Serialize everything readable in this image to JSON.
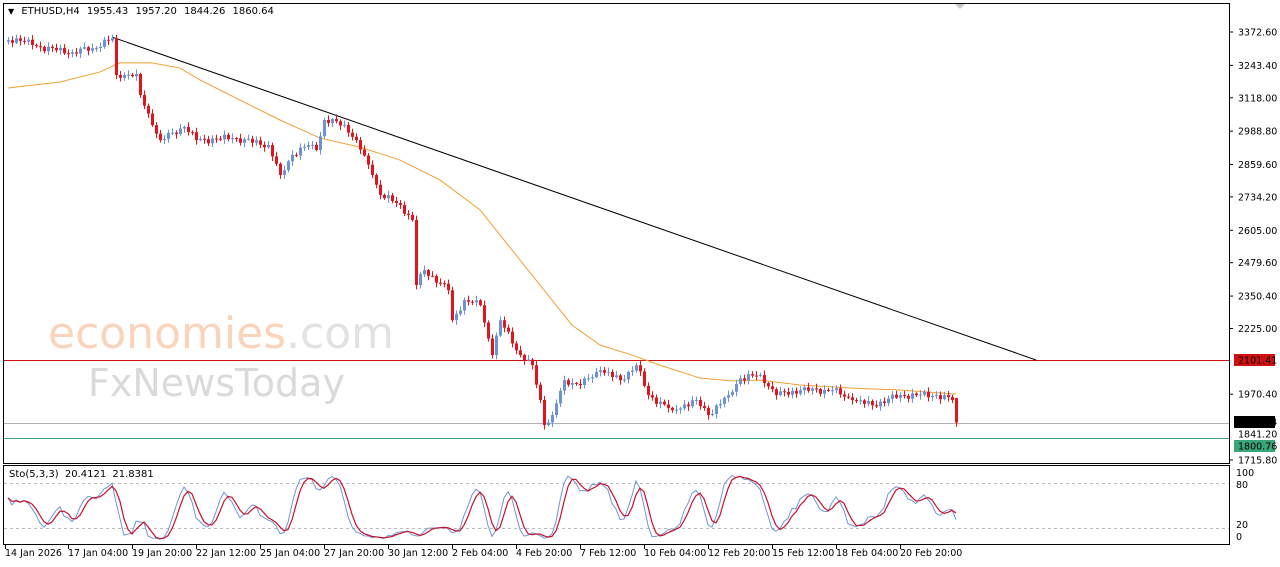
{
  "header": {
    "menu_icon": "triangle-down-icon",
    "symbol": "ETHUSD,H4",
    "open": "1955.43",
    "high": "1957.20",
    "low": "1844.26",
    "close": "1860.64"
  },
  "watermark": {
    "brand1": "economies",
    "brand1_suffix": ".com",
    "brand2": "FxNewsToday"
  },
  "colors": {
    "bull": "#6b94d6",
    "bear": "#e3141c",
    "ma": "#f0a030",
    "trendline": "#000000",
    "resistance": "#d01010",
    "bid_line": "#b0b0b0",
    "support": "#3aa57a",
    "stoch_main": "#6f96cf",
    "stoch_signal": "#c8102e"
  },
  "chart_data": {
    "type": "candlestick",
    "symbol": "ETHUSD",
    "timeframe": "H4",
    "ylim": [
      1715.8,
      3372.6
    ],
    "y_ticks": [
      "3372.60",
      "3243.40",
      "3118.00",
      "2988.80",
      "2859.60",
      "2734.20",
      "2605.00",
      "2479.60",
      "2350.40",
      "2225.00",
      "1970.40",
      "1715.80"
    ],
    "x_ticks": [
      "14 Jan 2026",
      "17 Jan 04:00",
      "19 Jan 20:00",
      "22 Jan 12:00",
      "25 Jan 04:00",
      "27 Jan 20:00",
      "30 Jan 12:00",
      "2 Feb 04:00",
      "4 Feb 20:00",
      "7 Feb 12:00",
      "10 Feb 04:00",
      "12 Feb 20:00",
      "15 Feb 12:00",
      "18 Feb 04:00",
      "20 Feb 20:00"
    ],
    "x_tick_times": [
      "2026-01-14 00:00",
      "2026-01-17 04:00",
      "2026-01-19 20:00",
      "2026-01-22 12:00",
      "2026-01-25 04:00",
      "2026-01-27 20:00",
      "2026-01-30 12:00",
      "2026-02-02 04:00",
      "2026-02-04 20:00",
      "2026-02-07 12:00",
      "2026-02-10 04:00",
      "2026-02-12 20:00",
      "2026-02-15 12:00",
      "2026-02-18 04:00",
      "2026-02-20 20:00"
    ],
    "close_path": [
      [
        "2026-01-14 16:00",
        3341
      ],
      [
        "2026-01-15 00:00",
        3348
      ],
      [
        "2026-01-15 16:00",
        3322
      ],
      [
        "2026-01-16 16:00",
        3302
      ],
      [
        "2026-01-17 08:00",
        3294
      ],
      [
        "2026-01-18 04:00",
        3310
      ],
      [
        "2026-01-19 00:00",
        3349
      ],
      [
        "2026-01-19 04:00",
        3206
      ],
      [
        "2026-01-20 00:00",
        3210
      ],
      [
        "2026-01-20 04:00",
        3129
      ],
      [
        "2026-01-20 16:00",
        3012
      ],
      [
        "2026-01-21 00:00",
        2954
      ],
      [
        "2026-01-22 00:00",
        3005
      ],
      [
        "2026-01-22 12:00",
        2954
      ],
      [
        "2026-01-24 00:00",
        2962
      ],
      [
        "2026-01-25 12:00",
        2935
      ],
      [
        "2026-01-26 00:00",
        2819
      ],
      [
        "2026-01-26 12:00",
        2897
      ],
      [
        "2026-01-27 04:00",
        2935
      ],
      [
        "2026-01-27 12:00",
        2916
      ],
      [
        "2026-01-27 20:00",
        3032
      ],
      [
        "2026-01-28 16:00",
        3013
      ],
      [
        "2026-01-29 04:00",
        2954
      ],
      [
        "2026-01-29 20:00",
        2819
      ],
      [
        "2026-01-30 04:00",
        2742
      ],
      [
        "2026-01-31 00:00",
        2703
      ],
      [
        "2026-01-31 12:00",
        2645
      ],
      [
        "2026-01-31 16:00",
        2393
      ],
      [
        "2026-02-01 00:00",
        2451
      ],
      [
        "2026-02-02 00:00",
        2373
      ],
      [
        "2026-02-02 04:00",
        2257
      ],
      [
        "2026-02-02 16:00",
        2335
      ],
      [
        "2026-02-03 08:00",
        2315
      ],
      [
        "2026-02-03 20:00",
        2122
      ],
      [
        "2026-02-04 04:00",
        2257
      ],
      [
        "2026-02-05 00:00",
        2122
      ],
      [
        "2026-02-05 12:00",
        2083
      ],
      [
        "2026-02-05 20:00",
        1948
      ],
      [
        "2026-02-06 00:00",
        1851
      ],
      [
        "2026-02-06 08:00",
        1890
      ],
      [
        "2026-02-06 20:00",
        2025
      ],
      [
        "2026-02-07 12:00",
        2006
      ],
      [
        "2026-02-08 08:00",
        2064
      ],
      [
        "2026-02-09 04:00",
        2025
      ],
      [
        "2026-02-09 20:00",
        2083
      ],
      [
        "2026-02-10 08:00",
        1967
      ],
      [
        "2026-02-11 08:00",
        1909
      ],
      [
        "2026-02-12 08:00",
        1948
      ],
      [
        "2026-02-12 20:00",
        1890
      ],
      [
        "2026-02-13 16:00",
        1967
      ],
      [
        "2026-02-14 04:00",
        2032
      ],
      [
        "2026-02-15 00:00",
        2045
      ],
      [
        "2026-02-15 16:00",
        1967
      ],
      [
        "2026-02-16 16:00",
        1986
      ],
      [
        "2026-02-18 00:00",
        1986
      ],
      [
        "2026-02-18 20:00",
        1948
      ],
      [
        "2026-02-19 16:00",
        1928
      ],
      [
        "2026-02-20 20:00",
        1967
      ],
      [
        "2026-02-22 08:00",
        1967
      ],
      [
        "2026-02-23 00:00",
        1948
      ],
      [
        "2026-02-23 04:00",
        1860.64
      ]
    ],
    "moving_average": [
      [
        "2026-01-14 16:00",
        3156
      ],
      [
        "2026-01-16 20:00",
        3179
      ],
      [
        "2026-01-18 12:00",
        3218
      ],
      [
        "2026-01-19 08:00",
        3253
      ],
      [
        "2026-01-20 16:00",
        3253
      ],
      [
        "2026-01-21 20:00",
        3233
      ],
      [
        "2026-01-22 16:00",
        3187
      ],
      [
        "2026-01-24 08:00",
        3109
      ],
      [
        "2026-01-26 00:00",
        3032
      ],
      [
        "2026-01-27 16:00",
        2962
      ],
      [
        "2026-01-29 08:00",
        2927
      ],
      [
        "2026-01-31 00:00",
        2877
      ],
      [
        "2026-02-01 16:00",
        2800
      ],
      [
        "2026-02-03 08:00",
        2684
      ],
      [
        "2026-02-05 00:00",
        2490
      ],
      [
        "2026-02-06 08:00",
        2335
      ],
      [
        "2026-02-07 04:00",
        2238
      ],
      [
        "2026-02-08 08:00",
        2161
      ],
      [
        "2026-02-09 16:00",
        2122
      ],
      [
        "2026-02-10 20:00",
        2083
      ],
      [
        "2026-02-12 12:00",
        2033
      ],
      [
        "2026-02-13 20:00",
        2022
      ],
      [
        "2026-02-15 00:00",
        2025
      ],
      [
        "2026-02-16 16:00",
        2006
      ],
      [
        "2026-02-18 20:00",
        1994
      ],
      [
        "2026-02-20 20:00",
        1987
      ],
      [
        "2026-02-23 04:00",
        1971
      ]
    ],
    "trendline": [
      [
        "2026-01-19 00:00",
        3353
      ],
      [
        "2026-02-26 12:00",
        2103
      ]
    ],
    "horizontal_lines": [
      {
        "price": 2101.41,
        "label": "2101.41",
        "role": "resistance"
      },
      {
        "price": 1860.64,
        "label": "1860.64",
        "role": "bid"
      },
      {
        "price": 1800.76,
        "label": "1800.76",
        "role": "support"
      }
    ],
    "hidden_label": "1841.20",
    "stochastic": {
      "label": "Sto(5,3,3)",
      "main": "20.4121",
      "signal": "21.8381",
      "levels": [
        80,
        20
      ],
      "ylim": [
        0,
        100
      ],
      "y_ticks": [
        "100",
        "80",
        "20",
        "0"
      ]
    }
  }
}
